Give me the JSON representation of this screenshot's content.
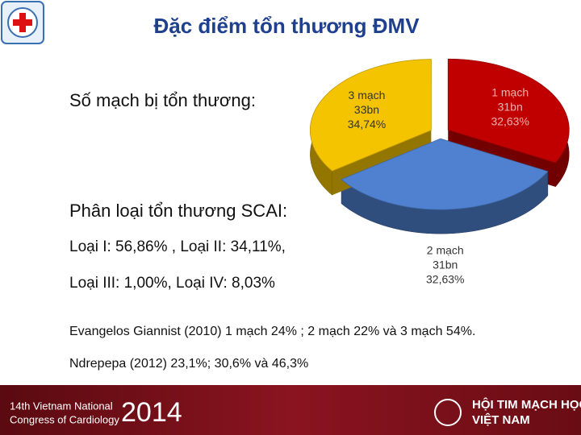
{
  "slide": {
    "title": "Đặc điểm tổn thương ĐMV",
    "vessels_heading": "Số mạch bị tổn thương:",
    "scai_heading": "Phân loại tổn thương SCAI:",
    "scai_line1": "Loại I: 56,86% , Loại II: 34,11%,",
    "scai_line2": "Loại III: 1,00%, Loại IV: 8,03%",
    "reference1": "Evangelos Giannist (2010) 1 mạch 24% ; 2 mạch 22% và 3 mạch 54%.",
    "reference2": "Ndrepepa (2012) 23,1%; 30,6% và 46,3%",
    "footer_event_line1": "14th Vietnam National",
    "footer_event_line2": "Congress of Cardiology",
    "footer_year": "2014",
    "footer_org_line1": "HỘI TIM MẠCH HỌC",
    "footer_org_line2": "VIỆT NAM"
  },
  "chart_data": {
    "type": "pie",
    "categories": [
      "1 mạch",
      "2 mạch",
      "3 mạch"
    ],
    "count_labels": [
      "31bn",
      "31bn",
      "33bn"
    ],
    "values": [
      32.63,
      32.63,
      34.74
    ],
    "value_labels": [
      "32,63%",
      "32,63%",
      "34,74%"
    ],
    "colors": [
      "#c00000",
      "#4f81d0",
      "#f5c400"
    ]
  }
}
